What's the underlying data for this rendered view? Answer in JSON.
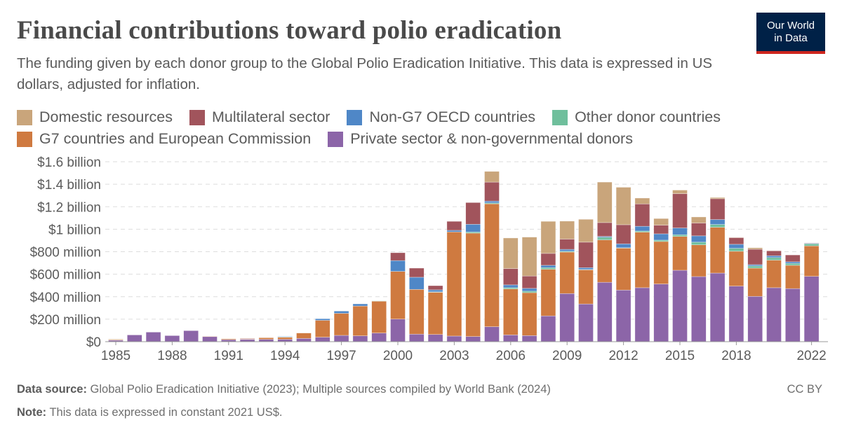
{
  "header": {
    "title": "Financial contributions toward polio eradication",
    "subtitle": "The funding given by each donor group to the Global Polio Eradication Initiative. This data is expressed in US dollars, adjusted for inflation.",
    "logo_line1": "Our World",
    "logo_line2": "in Data"
  },
  "footer": {
    "source_label": "Data source:",
    "source_text": " Global Polio Eradication Initiative (2023); Multiple sources compiled by World Bank (2024)",
    "note_label": "Note:",
    "note_text": " This data is expressed in constant 2021 US$.",
    "license": "CC BY"
  },
  "chart_data": {
    "type": "bar",
    "stacked": true,
    "title": "Financial contributions toward polio eradication",
    "unit": "million US$ (constant 2021)",
    "ylim": [
      0,
      1600
    ],
    "y_ticks": [
      0,
      200,
      400,
      600,
      800,
      1000,
      1200,
      1400,
      1600
    ],
    "y_tick_labels": [
      "$0",
      "$200 million",
      "$400 million",
      "$600 million",
      "$800 million",
      "$1 billion",
      "$1.2 billion",
      "$1.4 billion",
      "$1.6 billion"
    ],
    "x_tick_labels": [
      "1985",
      "1988",
      "1991",
      "1994",
      "1997",
      "2000",
      "2003",
      "2006",
      "2009",
      "2012",
      "2015",
      "2018",
      "2022"
    ],
    "grid": "horizontal dashed",
    "legend_placement": "top",
    "categories": [
      1985,
      1986,
      1987,
      1988,
      1989,
      1990,
      1991,
      1992,
      1993,
      1994,
      1995,
      1996,
      1997,
      1998,
      1999,
      2000,
      2001,
      2002,
      2003,
      2004,
      2005,
      2006,
      2007,
      2008,
      2009,
      2010,
      2011,
      2012,
      2013,
      2014,
      2015,
      2016,
      2017,
      2018,
      2019,
      2020,
      2021,
      2022
    ],
    "series": [
      {
        "name": "Private sector & non-governmental donors",
        "color": "#8c65a8",
        "values": [
          13,
          60,
          85,
          54,
          98,
          45,
          18,
          20,
          21,
          21,
          29,
          40,
          56,
          52,
          77,
          201,
          67,
          64,
          50,
          46,
          133,
          60,
          54,
          229,
          428,
          335,
          528,
          459,
          480,
          513,
          635,
          579,
          610,
          494,
          403,
          480,
          472,
          581
        ]
      },
      {
        "name": "G7 countries and European Commission",
        "color": "#cf7a40",
        "values": [
          5,
          0,
          0,
          0,
          0,
          3,
          7,
          4,
          14,
          18,
          48,
          150,
          196,
          265,
          283,
          424,
          398,
          375,
          926,
          919,
          1093,
          409,
          382,
          415,
          369,
          304,
          377,
          373,
          494,
          378,
          301,
          282,
          407,
          310,
          251,
          245,
          207,
          271
        ]
      },
      {
        "name": "Other donor countries",
        "color": "#6fbf9c",
        "values": [
          0,
          0,
          0,
          0,
          0,
          0,
          0,
          0,
          0,
          4,
          0,
          0,
          0,
          0,
          3,
          0,
          0,
          4,
          0,
          10,
          8,
          11,
          13,
          14,
          7,
          3,
          23,
          3,
          10,
          12,
          15,
          24,
          25,
          26,
          19,
          23,
          17,
          18
        ]
      },
      {
        "name": "Non-G7 OECD countries",
        "color": "#4f87c7",
        "values": [
          0,
          0,
          0,
          0,
          0,
          0,
          0,
          0,
          0,
          4,
          0,
          14,
          20,
          19,
          0,
          96,
          108,
          18,
          14,
          69,
          16,
          25,
          25,
          21,
          17,
          16,
          8,
          35,
          42,
          56,
          60,
          56,
          44,
          36,
          12,
          16,
          14,
          5
        ]
      },
      {
        "name": "Multilateral sector",
        "color": "#a1545c",
        "values": [
          0,
          0,
          0,
          0,
          0,
          0,
          0,
          5,
          0,
          0,
          0,
          0,
          0,
          0,
          0,
          70,
          81,
          37,
          80,
          193,
          169,
          145,
          110,
          106,
          91,
          227,
          123,
          170,
          199,
          77,
          305,
          114,
          185,
          59,
          137,
          44,
          61,
          3
        ]
      },
      {
        "name": "Domestic resources",
        "color": "#c9a57b",
        "values": [
          5,
          0,
          0,
          0,
          0,
          0,
          0,
          0,
          0,
          0,
          0,
          0,
          0,
          0,
          0,
          0,
          0,
          0,
          0,
          0,
          95,
          272,
          346,
          285,
          160,
          203,
          360,
          333,
          52,
          59,
          32,
          54,
          11,
          3,
          13,
          2,
          0,
          0
        ]
      }
    ]
  },
  "legend": {
    "rows": [
      [
        {
          "label": "Domestic resources",
          "color": "#c9a57b"
        },
        {
          "label": "Multilateral sector",
          "color": "#a1545c"
        },
        {
          "label": "Non-G7 OECD countries",
          "color": "#4f87c7"
        },
        {
          "label": "Other donor countries",
          "color": "#6fbf9c"
        }
      ],
      [
        {
          "label": "G7 countries and European Commission",
          "color": "#cf7a40"
        },
        {
          "label": "Private sector & non-governmental donors",
          "color": "#8c65a8"
        }
      ]
    ]
  }
}
